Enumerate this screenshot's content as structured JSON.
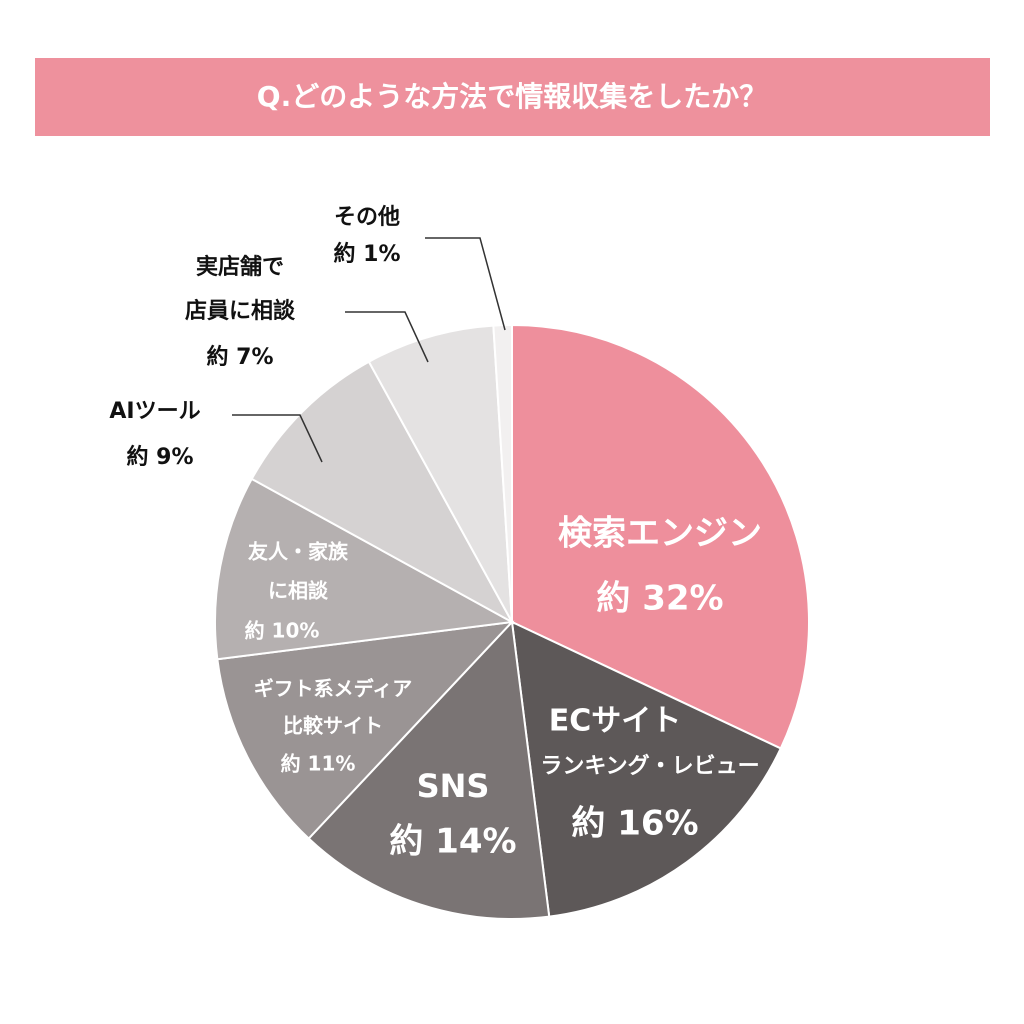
{
  "chart_data": {
    "type": "pie",
    "title": "Q.どのような方法で情報収集をしたか？",
    "categories": [
      [
        "検索エンジン"
      ],
      [
        "ECサイト",
        "ランキング・レビュー"
      ],
      [
        "SNS"
      ],
      [
        "ギフト系メディア",
        "比較サイト"
      ],
      [
        "友人・家族",
        "に相談"
      ],
      [
        "AIツール"
      ],
      [
        "実店舗で",
        "店員に相談"
      ],
      [
        "その他"
      ]
    ],
    "values": [
      32,
      16,
      14,
      11,
      10,
      9,
      7,
      1
    ],
    "value_labels": [
      "約 32%",
      "約 16%",
      "約 14%",
      "約 11%",
      "約 10%",
      "約 9%",
      "約 7%",
      "約 1%"
    ],
    "colors": [
      "#ee8f9c",
      "#5d5858",
      "#7a7474",
      "#9a9494",
      "#b5b0b0",
      "#d5d2d2",
      "#e4e2e2",
      "#f2f0f0"
    ]
  }
}
